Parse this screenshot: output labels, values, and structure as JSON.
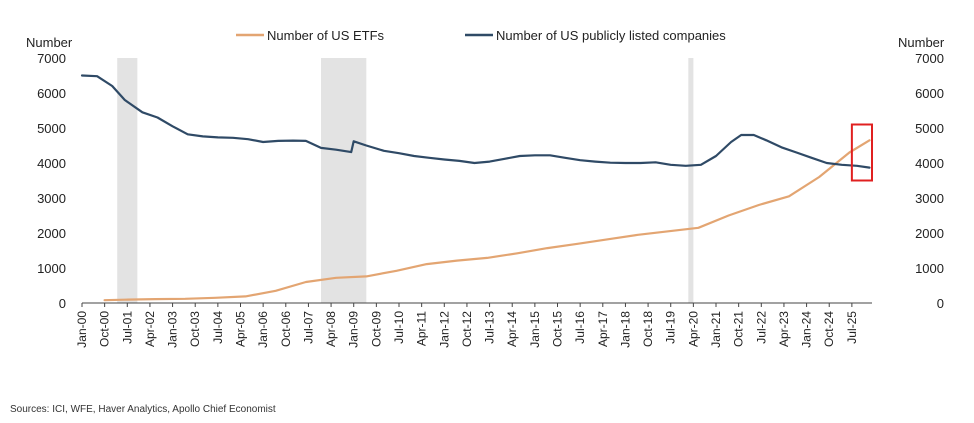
{
  "chart_data": {
    "type": "line",
    "title": "",
    "ylabel_left": "Number",
    "ylabel_right": "Number",
    "ylim": [
      0,
      7000
    ],
    "yticks": [
      0,
      1000,
      2000,
      3000,
      4000,
      5000,
      6000,
      7000
    ],
    "xlim": [
      "2000-01",
      "2026-03"
    ],
    "xtick_labels": [
      "Jan-00",
      "Oct-00",
      "Jul-01",
      "Apr-02",
      "Jan-03",
      "Oct-03",
      "Jul-04",
      "Apr-05",
      "Jan-06",
      "Oct-06",
      "Jul-07",
      "Apr-08",
      "Jan-09",
      "Oct-09",
      "Jul-10",
      "Apr-11",
      "Jan-12",
      "Oct-12",
      "Jul-13",
      "Apr-14",
      "Jan-15",
      "Oct-15",
      "Jul-16",
      "Apr-17",
      "Jan-18",
      "Oct-18",
      "Jul-19",
      "Apr-20",
      "Jan-21",
      "Oct-21",
      "Jul-22",
      "Apr-23",
      "Jan-24",
      "Oct-24",
      "Jul-25"
    ],
    "legend_position": "top",
    "grid": false,
    "shaded_periods": [
      {
        "start": "2001-03",
        "end": "2001-11"
      },
      {
        "start": "2007-12",
        "end": "2009-06"
      },
      {
        "start": "2020-02",
        "end": "2020-04"
      }
    ],
    "highlight_box": {
      "x_start": "2025-07",
      "x_end": "2026-03",
      "y_start": 3500,
      "y_end": 5100
    },
    "series": [
      {
        "name": "Number of US ETFs",
        "color": "#E3A572",
        "points": [
          [
            "2000-10",
            80
          ],
          [
            "2001-06",
            95
          ],
          [
            "2002-06",
            110
          ],
          [
            "2003-06",
            120
          ],
          [
            "2004-06",
            150
          ],
          [
            "2005-06",
            190
          ],
          [
            "2006-06",
            350
          ],
          [
            "2007-06",
            600
          ],
          [
            "2008-06",
            720
          ],
          [
            "2009-06",
            760
          ],
          [
            "2010-06",
            920
          ],
          [
            "2011-06",
            1110
          ],
          [
            "2012-06",
            1210
          ],
          [
            "2013-06",
            1290
          ],
          [
            "2014-06",
            1420
          ],
          [
            "2015-06",
            1570
          ],
          [
            "2016-06",
            1690
          ],
          [
            "2017-06",
            1820
          ],
          [
            "2018-06",
            1950
          ],
          [
            "2019-06",
            2050
          ],
          [
            "2020-06",
            2150
          ],
          [
            "2021-06",
            2500
          ],
          [
            "2022-06",
            2800
          ],
          [
            "2023-06",
            3050
          ],
          [
            "2024-06",
            3600
          ],
          [
            "2025-06",
            4300
          ],
          [
            "2026-02",
            4650
          ]
        ]
      },
      {
        "name": "Number of US publicly listed companies",
        "color": "#2F4A66",
        "points": [
          [
            "2000-01",
            6500
          ],
          [
            "2000-07",
            6480
          ],
          [
            "2001-01",
            6200
          ],
          [
            "2001-06",
            5800
          ],
          [
            "2002-01",
            5450
          ],
          [
            "2002-07",
            5300
          ],
          [
            "2003-01",
            5050
          ],
          [
            "2003-07",
            4820
          ],
          [
            "2004-01",
            4760
          ],
          [
            "2004-07",
            4730
          ],
          [
            "2005-01",
            4720
          ],
          [
            "2005-07",
            4680
          ],
          [
            "2006-01",
            4600
          ],
          [
            "2006-07",
            4630
          ],
          [
            "2007-01",
            4640
          ],
          [
            "2007-06",
            4630
          ],
          [
            "2007-12",
            4430
          ],
          [
            "2008-06",
            4380
          ],
          [
            "2008-12",
            4310
          ],
          [
            "2009-01",
            4620
          ],
          [
            "2009-06",
            4500
          ],
          [
            "2010-01",
            4350
          ],
          [
            "2010-07",
            4280
          ],
          [
            "2011-01",
            4200
          ],
          [
            "2011-07",
            4150
          ],
          [
            "2012-01",
            4100
          ],
          [
            "2012-07",
            4060
          ],
          [
            "2013-01",
            4000
          ],
          [
            "2013-07",
            4040
          ],
          [
            "2014-01",
            4120
          ],
          [
            "2014-07",
            4200
          ],
          [
            "2015-01",
            4220
          ],
          [
            "2015-07",
            4220
          ],
          [
            "2016-01",
            4150
          ],
          [
            "2016-07",
            4080
          ],
          [
            "2017-01",
            4040
          ],
          [
            "2017-07",
            4010
          ],
          [
            "2018-01",
            4000
          ],
          [
            "2018-07",
            4000
          ],
          [
            "2019-01",
            4020
          ],
          [
            "2019-07",
            3950
          ],
          [
            "2020-01",
            3920
          ],
          [
            "2020-07",
            3950
          ],
          [
            "2021-01",
            4200
          ],
          [
            "2021-07",
            4600
          ],
          [
            "2021-11",
            4800
          ],
          [
            "2022-04",
            4800
          ],
          [
            "2022-09",
            4650
          ],
          [
            "2023-03",
            4450
          ],
          [
            "2023-09",
            4300
          ],
          [
            "2024-03",
            4150
          ],
          [
            "2024-09",
            4000
          ],
          [
            "2025-03",
            3950
          ],
          [
            "2025-09",
            3920
          ],
          [
            "2026-02",
            3870
          ]
        ]
      }
    ]
  },
  "source_text": "Sources: ICI, WFE, Haver Analytics, Apollo Chief Economist"
}
